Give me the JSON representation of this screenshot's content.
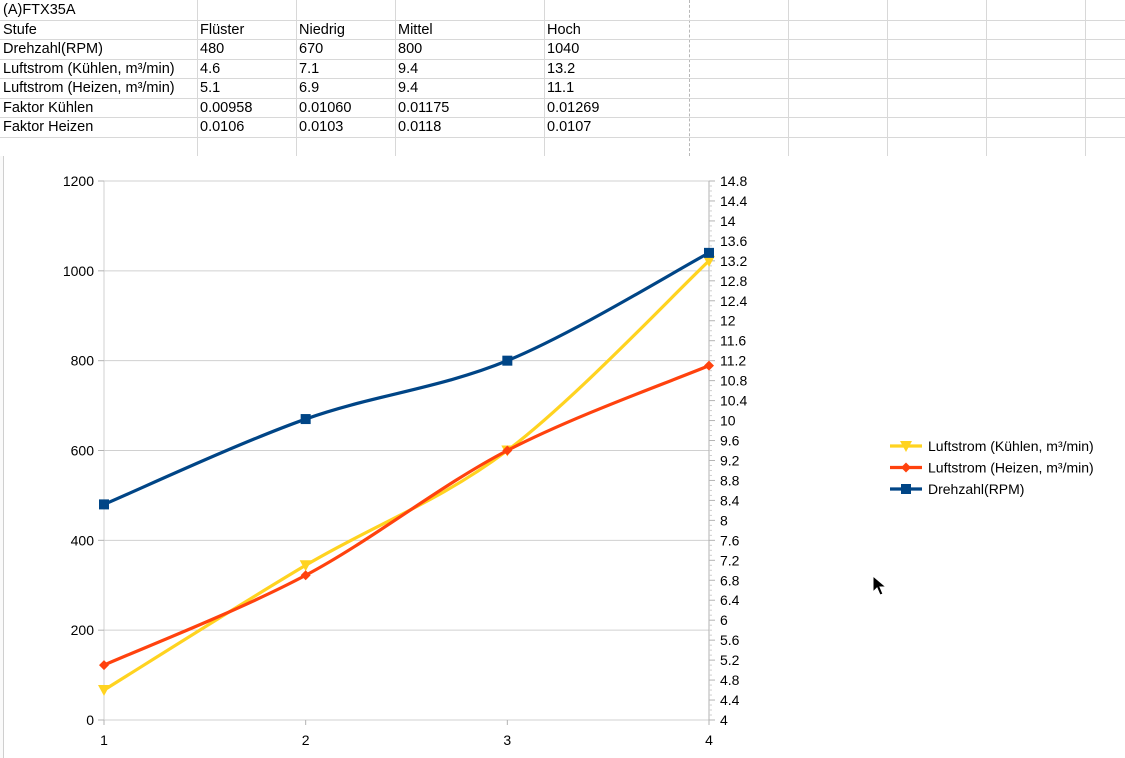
{
  "sheet": {
    "title_cell": "(A)FTX35A",
    "header": [
      "Stufe",
      "Flüster",
      "Niedrig",
      "Mittel",
      "Hoch"
    ],
    "rows": [
      [
        "Drehzahl(RPM)",
        "480",
        "670",
        "800",
        "1040"
      ],
      [
        "Luftstrom (Kühlen, m³/min)",
        "4.6",
        "7.1",
        "9.4",
        "13.2"
      ],
      [
        "Luftstrom (Heizen, m³/min)",
        "5.1",
        "6.9",
        "9.4",
        "11.1"
      ],
      [
        "Faktor Kühlen",
        "0.00958",
        "0.01060",
        "0.01175",
        "0.01269"
      ],
      [
        "Faktor Heizen",
        "0.0106",
        "0.0103",
        "0.0118",
        "0.0107"
      ]
    ]
  },
  "chart_data": {
    "type": "line",
    "x": [
      1,
      2,
      3,
      4
    ],
    "x_ticks": [
      "1",
      "2",
      "3",
      "4"
    ],
    "y_left": {
      "range": [
        0,
        1200
      ],
      "ticks": [
        "0",
        "200",
        "400",
        "600",
        "800",
        "1000",
        "1200"
      ]
    },
    "y_right": {
      "range": [
        4,
        14.8
      ],
      "ticks": [
        "4",
        "4.4",
        "4.8",
        "5.2",
        "5.6",
        "6",
        "6.4",
        "6.8",
        "7.2",
        "7.6",
        "8",
        "8.4",
        "8.8",
        "9.2",
        "9.6",
        "10",
        "10.4",
        "10.8",
        "11.2",
        "11.6",
        "12",
        "12.4",
        "12.8",
        "13.2",
        "13.6",
        "14",
        "14.4",
        "14.8"
      ]
    },
    "grid": true,
    "legend_position": "right",
    "series": [
      {
        "name": "Luftstrom (Kühlen, m³/min)",
        "axis": "right",
        "values": [
          4.6,
          7.1,
          9.4,
          13.2
        ],
        "color": "#ffd320",
        "marker": "triangle-down"
      },
      {
        "name": "Luftstrom (Heizen, m³/min)",
        "axis": "right",
        "values": [
          5.1,
          6.9,
          9.4,
          11.1
        ],
        "color": "#ff420e",
        "marker": "diamond"
      },
      {
        "name": "Drehzahl(RPM)",
        "axis": "left",
        "values": [
          480,
          670,
          800,
          1040
        ],
        "color": "#004586",
        "marker": "square"
      }
    ]
  }
}
